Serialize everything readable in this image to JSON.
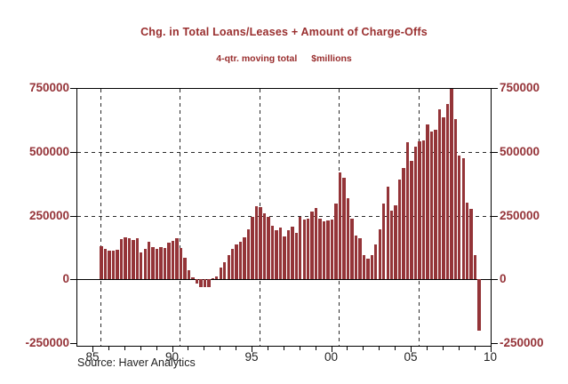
{
  "header": {
    "title": "Chg. in Total Loans/Leases + Amount of Charge-Offs",
    "subtitle_left": "4-qtr. moving total",
    "subtitle_right": "$millions"
  },
  "footer": {
    "source": "Source: Haver Analytics"
  },
  "colors": {
    "bar": "#943438",
    "axis_value_labels": "#953338",
    "title_text": "#992e2e",
    "year_labels": "#1f1f1f"
  },
  "chart_data": {
    "type": "bar",
    "title": "Chg. in Total Loans/Leases + Amount of Charge-Offs",
    "subtitle": "4-qtr. moving total    $millions",
    "unit": "$millions",
    "frequency": "quarterly",
    "ylim": [
      -250000,
      750000
    ],
    "grid": "dashed",
    "legend_position": "none",
    "yticks": [
      {
        "v": 750000,
        "label": "750000"
      },
      {
        "v": 500000,
        "label": "500000"
      },
      {
        "v": 250000,
        "label": "250000"
      },
      {
        "v": 0,
        "label": "0"
      },
      {
        "v": -250000,
        "label": "-250000"
      }
    ],
    "xticks": [
      {
        "year": 1985,
        "label": "85"
      },
      {
        "year": 1990,
        "label": "90"
      },
      {
        "year": 1995,
        "label": "95"
      },
      {
        "year": 2000,
        "label": "00"
      },
      {
        "year": 2005,
        "label": "05"
      },
      {
        "year": 2010,
        "label": "10"
      }
    ],
    "x_minor_tick_years": [
      1986,
      1987,
      1988,
      1989,
      1991,
      1992,
      1993,
      1994,
      1996,
      1997,
      1998,
      1999,
      2001,
      2002,
      2003,
      2004,
      2006,
      2007,
      2008,
      2009
    ],
    "h_gridlines": [
      500000,
      250000
    ],
    "v_gridline_years": [
      1985.5,
      1990.5,
      1995.5,
      2000.5,
      2005.5
    ],
    "categories": [
      "1985Q3",
      "1985Q4",
      "1986Q1",
      "1986Q2",
      "1986Q3",
      "1986Q4",
      "1987Q1",
      "1987Q2",
      "1987Q3",
      "1987Q4",
      "1988Q1",
      "1988Q2",
      "1988Q3",
      "1988Q4",
      "1989Q1",
      "1989Q2",
      "1989Q3",
      "1989Q4",
      "1990Q1",
      "1990Q2",
      "1990Q3",
      "1990Q4",
      "1991Q1",
      "1991Q2",
      "1991Q3",
      "1991Q4",
      "1992Q1",
      "1992Q2",
      "1992Q3",
      "1992Q4",
      "1993Q1",
      "1993Q2",
      "1993Q3",
      "1993Q4",
      "1994Q1",
      "1994Q2",
      "1994Q3",
      "1994Q4",
      "1995Q1",
      "1995Q2",
      "1995Q3",
      "1995Q4",
      "1996Q1",
      "1996Q2",
      "1996Q3",
      "1996Q4",
      "1997Q1",
      "1997Q2",
      "1997Q3",
      "1997Q4",
      "1998Q1",
      "1998Q2",
      "1998Q3",
      "1998Q4",
      "1999Q1",
      "1999Q2",
      "1999Q3",
      "1999Q4",
      "2000Q1",
      "2000Q2",
      "2000Q3",
      "2000Q4",
      "2001Q1",
      "2001Q2",
      "2001Q3",
      "2001Q4",
      "2002Q1",
      "2002Q2",
      "2002Q3",
      "2002Q4",
      "2003Q1",
      "2003Q2",
      "2003Q3",
      "2003Q4",
      "2004Q1",
      "2004Q2",
      "2004Q3",
      "2004Q4",
      "2005Q1",
      "2005Q2",
      "2005Q3",
      "2005Q4",
      "2006Q1",
      "2006Q2",
      "2006Q3",
      "2006Q4",
      "2007Q1",
      "2007Q2",
      "2007Q3",
      "2007Q4",
      "2008Q1",
      "2008Q2",
      "2008Q3",
      "2008Q4",
      "2009Q1",
      "2009Q2"
    ],
    "values": [
      130000,
      118000,
      112000,
      114000,
      116000,
      158000,
      163000,
      160000,
      153000,
      162000,
      106000,
      121000,
      146000,
      125000,
      120000,
      127000,
      124000,
      144000,
      152000,
      160000,
      124000,
      86000,
      37000,
      7000,
      -15000,
      -31000,
      -32000,
      -29000,
      6000,
      10000,
      46000,
      67000,
      96000,
      118000,
      136000,
      148000,
      165000,
      195000,
      246000,
      288000,
      282000,
      258000,
      246000,
      211000,
      192000,
      204000,
      168000,
      192000,
      207000,
      183000,
      246000,
      235000,
      237000,
      267000,
      279000,
      237000,
      229000,
      231000,
      235000,
      296000,
      419000,
      398000,
      318000,
      237000,
      171000,
      160000,
      94000,
      82000,
      96000,
      138000,
      195000,
      296000,
      362000,
      270000,
      290000,
      392000,
      435000,
      537000,
      463000,
      520000,
      542000,
      546000,
      608000,
      581000,
      587000,
      665000,
      636000,
      687000,
      745000,
      628000,
      484000,
      476000,
      300000,
      276000,
      95000,
      -200000
    ]
  }
}
